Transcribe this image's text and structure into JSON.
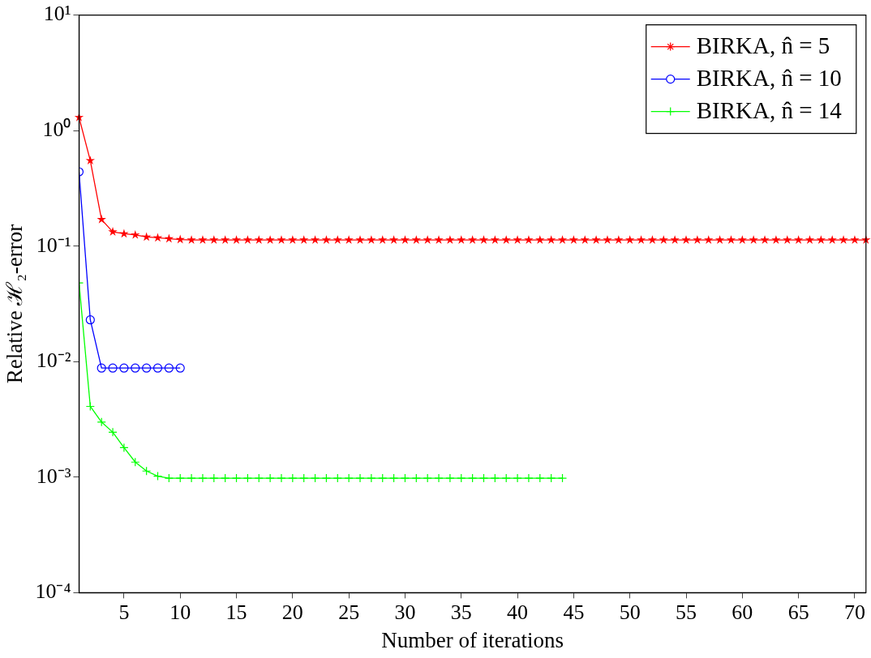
{
  "chart_data": {
    "type": "line",
    "xlabel": "Number of iterations",
    "ylabel": "Relative ℋ₂-error",
    "log": "y",
    "grid": false,
    "legend": "top right",
    "line_style": "solid",
    "xlim": [
      1,
      71
    ],
    "xticks": [
      5,
      10,
      15,
      20,
      25,
      30,
      35,
      40,
      45,
      50,
      55,
      60,
      65,
      70
    ],
    "ylim": [
      0.0001,
      10
    ],
    "yticks": [
      {
        "value": 0.0001,
        "label": "10⁻⁴"
      },
      {
        "value": 0.001,
        "label": "10⁻³"
      },
      {
        "value": 0.01,
        "label": "10⁻²"
      },
      {
        "value": 0.1,
        "label": "10⁻¹"
      },
      {
        "value": 1,
        "label": "10⁰"
      },
      {
        "value": 10,
        "label": "10¹"
      }
    ],
    "series": [
      {
        "name": "BIRKA, n̂ = 5",
        "color": "#ff0000",
        "marker": "star",
        "x": [
          1,
          2,
          3,
          4,
          5,
          6,
          7,
          8,
          9,
          10,
          11,
          12,
          13,
          14,
          15,
          16,
          17,
          18,
          19,
          20,
          21,
          22,
          23,
          24,
          25,
          26,
          27,
          28,
          29,
          30,
          31,
          32,
          33,
          34,
          35,
          36,
          37,
          38,
          39,
          40,
          41,
          42,
          43,
          44,
          45,
          46,
          47,
          48,
          49,
          50,
          51,
          52,
          53,
          54,
          55,
          56,
          57,
          58,
          59,
          60,
          61,
          62,
          63,
          64,
          65,
          66,
          67,
          68,
          69,
          70,
          71
        ],
        "values": [
          1.3,
          0.55,
          0.17,
          0.133,
          0.128,
          0.125,
          0.12,
          0.118,
          0.116,
          0.114,
          0.113,
          0.113,
          0.113,
          0.113,
          0.113,
          0.113,
          0.113,
          0.113,
          0.113,
          0.113,
          0.113,
          0.113,
          0.113,
          0.113,
          0.113,
          0.113,
          0.113,
          0.113,
          0.113,
          0.113,
          0.113,
          0.113,
          0.113,
          0.113,
          0.113,
          0.113,
          0.113,
          0.113,
          0.113,
          0.113,
          0.113,
          0.113,
          0.113,
          0.113,
          0.113,
          0.113,
          0.113,
          0.113,
          0.113,
          0.113,
          0.113,
          0.113,
          0.113,
          0.113,
          0.113,
          0.113,
          0.113,
          0.113,
          0.113,
          0.113,
          0.113,
          0.113,
          0.113,
          0.113,
          0.113,
          0.113,
          0.113,
          0.113,
          0.113,
          0.113,
          0.113
        ]
      },
      {
        "name": "BIRKA, n̂ = 10",
        "color": "#0000ff",
        "marker": "circle",
        "x": [
          1,
          2,
          3,
          4,
          5,
          6,
          7,
          8,
          9,
          10
        ],
        "values": [
          0.44,
          0.023,
          0.0088,
          0.0088,
          0.0088,
          0.0088,
          0.0088,
          0.0088,
          0.0088,
          0.0088
        ]
      },
      {
        "name": "BIRKA, n̂ = 14",
        "color": "#00ff00",
        "marker": "cross",
        "x": [
          1,
          2,
          3,
          4,
          5,
          6,
          7,
          8,
          9,
          10,
          11,
          12,
          13,
          14,
          15,
          16,
          17,
          18,
          19,
          20,
          21,
          22,
          23,
          24,
          25,
          26,
          27,
          28,
          29,
          30,
          31,
          32,
          33,
          34,
          35,
          36,
          37,
          38,
          39,
          40,
          41,
          42,
          43,
          44
        ],
        "values": [
          0.048,
          0.0041,
          0.003,
          0.00245,
          0.0018,
          0.00135,
          0.00113,
          0.00102,
          0.00098,
          0.00098,
          0.00098,
          0.00098,
          0.00098,
          0.00098,
          0.00098,
          0.00098,
          0.00098,
          0.00098,
          0.00098,
          0.00098,
          0.00098,
          0.00098,
          0.00098,
          0.00098,
          0.00098,
          0.00098,
          0.00098,
          0.00098,
          0.00098,
          0.00098,
          0.00098,
          0.00098,
          0.00098,
          0.00098,
          0.00098,
          0.00098,
          0.00098,
          0.00098,
          0.00098,
          0.00098,
          0.00098,
          0.00098,
          0.00098,
          0.00098
        ]
      }
    ]
  }
}
